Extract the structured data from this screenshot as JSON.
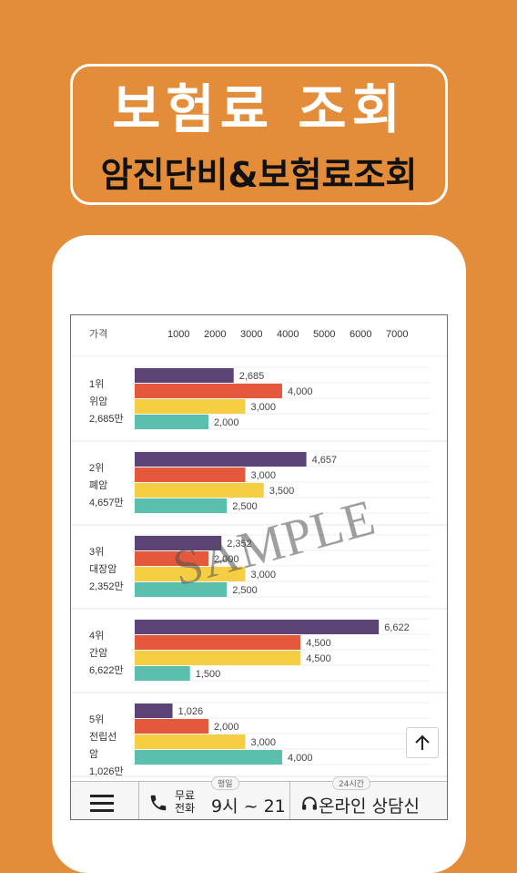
{
  "banner": {
    "title": "보험료 조회",
    "subtitle": "암진단비&보험료조회"
  },
  "colors": {
    "background": "#e38c3a",
    "series": [
      "#5b4475",
      "#e4583c",
      "#f6ce43",
      "#5bbfae"
    ]
  },
  "chart_data": {
    "type": "bar",
    "orientation": "horizontal",
    "header_label": "가격",
    "x_ticks": [
      "1000",
      "2000",
      "3000",
      "4000",
      "5000",
      "6000",
      "7000"
    ],
    "xlim": [
      0,
      7000
    ],
    "groups": [
      {
        "label_lines": [
          "1위",
          "위암",
          "2,685만"
        ],
        "values": [
          2685,
          4000,
          3000,
          2000
        ],
        "value_labels": [
          "2,685",
          "4,000",
          "3,000",
          "2,000"
        ]
      },
      {
        "label_lines": [
          "2위",
          "폐암",
          "4,657만"
        ],
        "values": [
          4657,
          3000,
          3500,
          2500
        ],
        "value_labels": [
          "4,657",
          "3,000",
          "3,500",
          "2,500"
        ]
      },
      {
        "label_lines": [
          "3위",
          "대장암",
          "2,352만"
        ],
        "values": [
          2352,
          2000,
          3000,
          2500
        ],
        "value_labels": [
          "2,352",
          "2,000",
          "3,000",
          "2,500"
        ]
      },
      {
        "label_lines": [
          "4위",
          "간암",
          "6,622만"
        ],
        "values": [
          6622,
          4500,
          4500,
          1500
        ],
        "value_labels": [
          "6,622",
          "4,500",
          "4,500",
          "1,500"
        ]
      },
      {
        "label_lines": [
          "5위",
          "전립선",
          "암",
          "1,026만"
        ],
        "values": [
          1026,
          2000,
          3000,
          4000
        ],
        "value_labels": [
          "1,026",
          "2,000",
          "3,000",
          "4,000"
        ]
      }
    ]
  },
  "watermark": "SAMPLE",
  "bottom_bar": {
    "free_call_label": "무료 전화",
    "hours_tag": "평일",
    "hours": "9시 ~ 21",
    "online_tag": "24시간",
    "online_label": "온라인 상담신"
  }
}
